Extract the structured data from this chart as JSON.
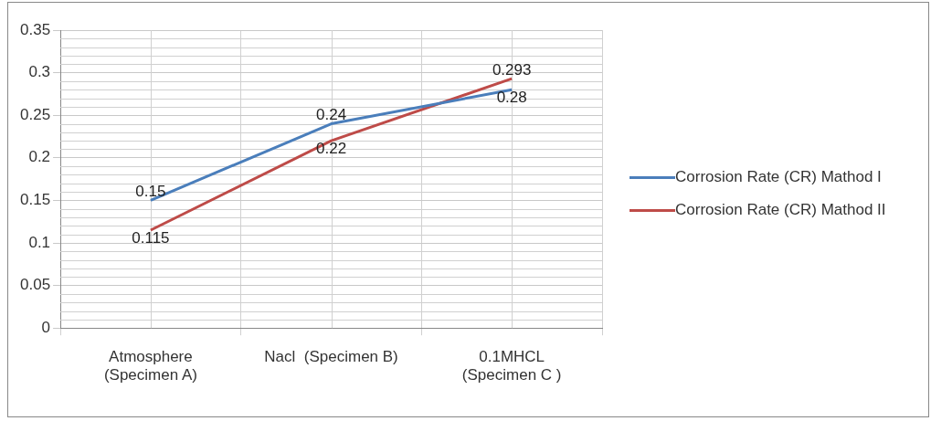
{
  "chart_data": {
    "type": "line",
    "categories": [
      "Atmosphere\n(Specimen A)",
      "Nacl  (Specimen B)",
      "0.1MHCL\n(Specimen C )"
    ],
    "series": [
      {
        "name": "Corrosion Rate (CR) Mathod I",
        "color": "#4a7ebb",
        "values": [
          0.15,
          0.24,
          0.28
        ]
      },
      {
        "name": "Corrosion Rate (CR) Mathod II",
        "color": "#be4b48",
        "values": [
          0.115,
          0.22,
          0.293
        ]
      }
    ],
    "ylim": [
      0,
      0.35
    ],
    "yticks": [
      0,
      0.05,
      0.1,
      0.15,
      0.2,
      0.25,
      0.3,
      0.35
    ],
    "grid": true,
    "legend": "right",
    "data_labels": true,
    "marker": "none",
    "line_style": "solid"
  }
}
